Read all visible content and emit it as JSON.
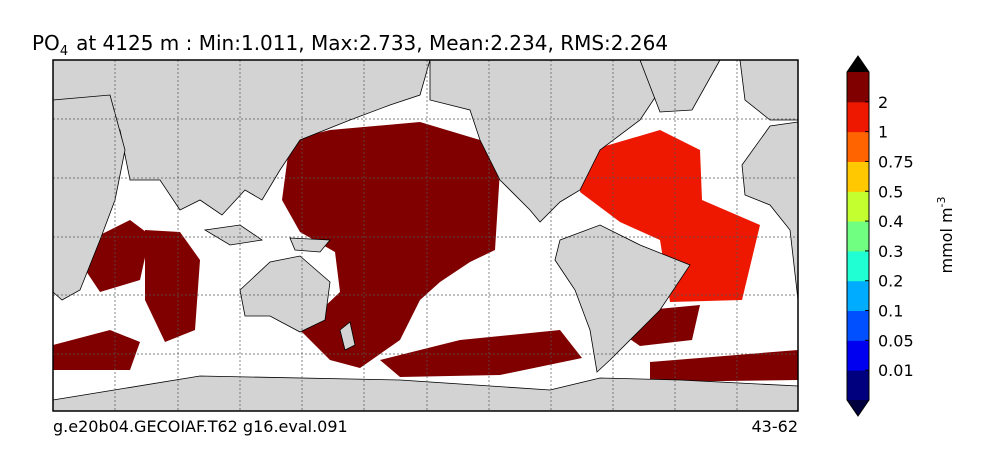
{
  "title": {
    "species": "PO",
    "subscript": "4",
    "rest": "at 4125 m : Min:1.011, Max:2.733, Mean:2.234, RMS:2.264"
  },
  "colorbar": {
    "ticks": [
      0.01,
      0.05,
      0.1,
      0.2,
      0.3,
      0.4,
      0.5,
      0.75,
      1,
      2
    ],
    "colors": [
      "#00007f",
      "#0000f0",
      "#0050ff",
      "#00acff",
      "#20ffd4",
      "#70ff80",
      "#c4ff30",
      "#ffc800",
      "#ff6400",
      "#ee1800",
      "#800000"
    ],
    "under_color": "#00003f",
    "over_color": "#000000",
    "label": "mmol m",
    "label_sup": "-3"
  },
  "footer": {
    "left": "g.e20b04.GECOIAF.T62 g16.eval.091",
    "right": "43-62"
  }
}
